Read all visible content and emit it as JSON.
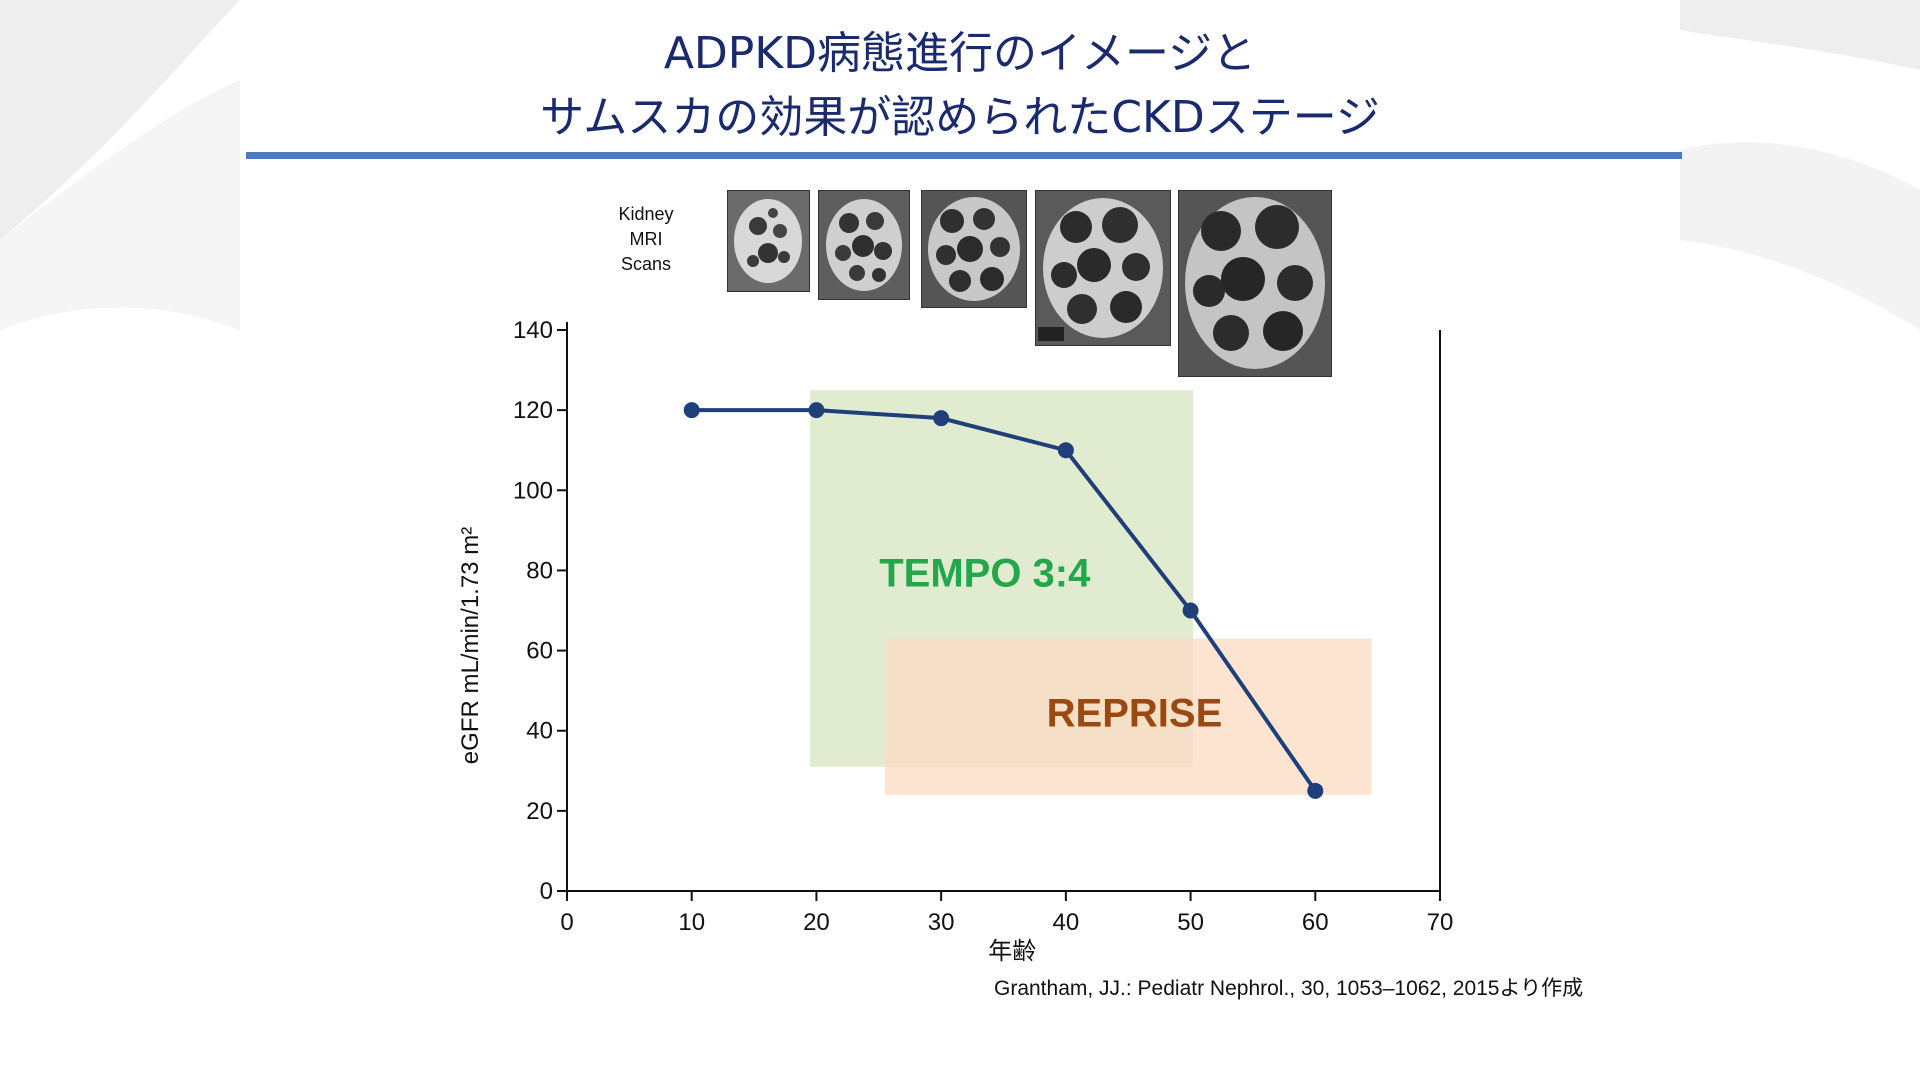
{
  "title": {
    "line1": "ADPKD病態進行のイメージと",
    "line2": "サムスカの効果が認められたCKDステージ"
  },
  "mri": {
    "label_lines": [
      "Kidney",
      "MRI",
      "Scans"
    ],
    "scan_count": 5
  },
  "chart_data": {
    "type": "line",
    "x": [
      10,
      20,
      30,
      40,
      50,
      60
    ],
    "series": [
      {
        "values": [
          120,
          120,
          118,
          110,
          70,
          25
        ],
        "color": "#1f3f7a"
      }
    ],
    "xlabel": "年齢",
    "ylabel": "eGFR mL/min/1.73 m²",
    "xlim": [
      0,
      70
    ],
    "ylim": [
      0,
      140
    ],
    "xticks": [
      0,
      10,
      20,
      30,
      40,
      50,
      60,
      70
    ],
    "yticks": [
      0,
      20,
      40,
      60,
      80,
      100,
      120,
      140
    ],
    "grid": false,
    "regions": [
      {
        "label": "TEMPO 3:4",
        "x": [
          19.5,
          50.2
        ],
        "y": [
          31,
          125
        ],
        "fill": "#d7e6c2",
        "text_color": "#22a84a",
        "label_at": [
          33.5,
          76
        ]
      },
      {
        "label": "REPRISE",
        "x": [
          25.5,
          64.5
        ],
        "y": [
          24,
          63
        ],
        "fill": "#fbdcc4",
        "text_color": "#9a4a10",
        "label_at": [
          45.5,
          41
        ]
      }
    ]
  },
  "citation": "Grantham, JJ.: Pediatr Nephrol., 30, 1053–1062, 2015より作成"
}
